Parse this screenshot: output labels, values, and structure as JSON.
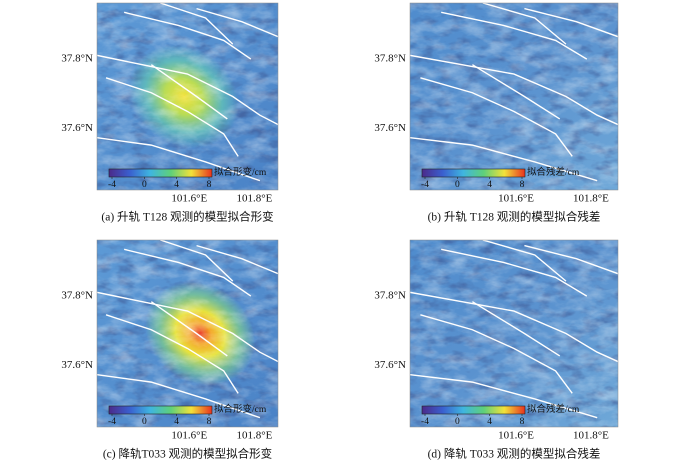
{
  "panels": [
    {
      "caption": "(a) 升轨 T128 观测的模型拟合形变",
      "y_labels": [
        "37.8°N",
        "37.6°N"
      ],
      "x_labels": [
        "101.6°E",
        "101.8°E"
      ],
      "colorbar": {
        "label": "拟合形变/cm",
        "ticks": [
          -4,
          0,
          4,
          8
        ]
      }
    },
    {
      "caption": "(b) 升轨 T128 观测的模型拟合残差",
      "y_labels": [
        "37.8°N",
        "37.6°N"
      ],
      "x_labels": [
        "101.6°E",
        "101.8°E"
      ],
      "colorbar": {
        "label": "拟合残差/cm",
        "ticks": [
          -4,
          0,
          4,
          8
        ]
      }
    },
    {
      "caption": "(c) 降轨T033 观测的模型拟合形变",
      "y_labels": [
        "37.8°N",
        "37.6°N"
      ],
      "x_labels": [
        "101.6°E",
        "101.8°E"
      ],
      "colorbar": {
        "label": "拟合形变/cm",
        "ticks": [
          -4,
          0,
          4,
          8
        ]
      }
    },
    {
      "caption": "(d) 降轨 T033 观测的模型拟合残差",
      "y_labels": [
        "37.8°N",
        "37.6°N"
      ],
      "x_labels": [
        "101.6°E",
        "101.8°E"
      ],
      "colorbar": {
        "label": "拟合残差/cm",
        "ticks": [
          -4,
          0,
          4,
          8
        ]
      }
    }
  ]
}
